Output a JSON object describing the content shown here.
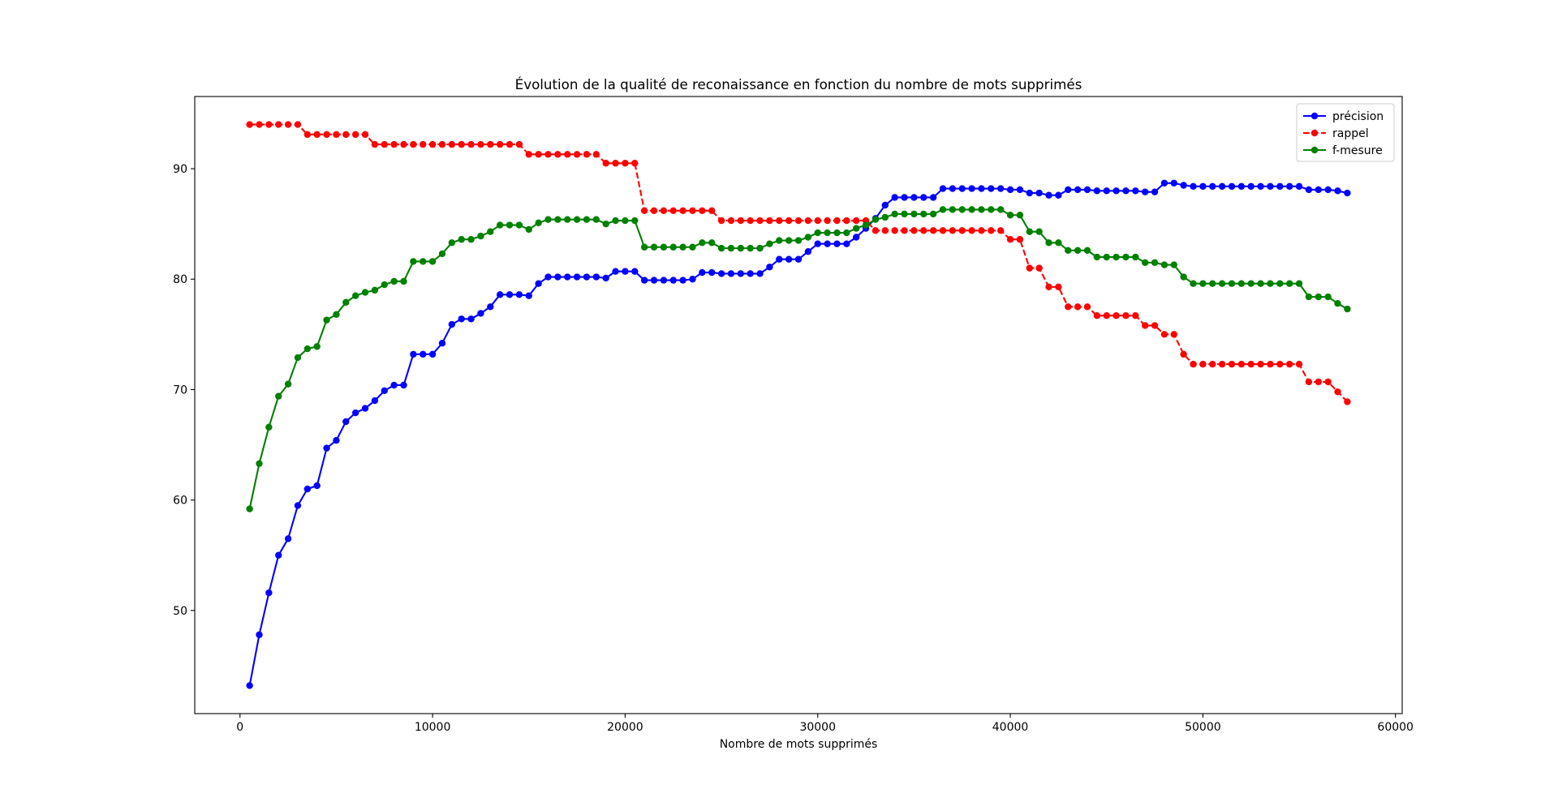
{
  "chart_data": {
    "type": "line",
    "title": "Évolution de la qualité de reconaissance en fonction du nombre de mots supprimés",
    "xlabel": "Nombre de mots supprimés",
    "x": [
      500,
      1000,
      1500,
      2000,
      2500,
      3000,
      3500,
      4000,
      4500,
      5000,
      5500,
      6000,
      6500,
      7000,
      7500,
      8000,
      8500,
      9000,
      9500,
      10000,
      10500,
      11000,
      11500,
      12000,
      12500,
      13000,
      13500,
      14000,
      14500,
      15000,
      15500,
      16000,
      16500,
      17000,
      17500,
      18000,
      18500,
      19000,
      19500,
      20000,
      20500,
      21000,
      21500,
      22000,
      22500,
      23000,
      23500,
      24000,
      24500,
      25000,
      25500,
      26000,
      26500,
      27000,
      27500,
      28000,
      28500,
      29000,
      29500,
      30000,
      30500,
      31000,
      31500,
      32000,
      32500,
      33000,
      33500,
      34000,
      34500,
      35000,
      35500,
      36000,
      36500,
      37000,
      37500,
      38000,
      38500,
      39000,
      39500,
      40000,
      40500,
      41000,
      41500,
      42000,
      42500,
      43000,
      43500,
      44000,
      44500,
      45000,
      45500,
      46000,
      46500,
      47000,
      47500,
      48000,
      48500,
      49000,
      49500,
      50000,
      50500,
      51000,
      51500,
      52000,
      52500,
      53000,
      53500,
      54000,
      54500,
      55000,
      55500,
      56000,
      56500,
      57000,
      57500
    ],
    "series": [
      {
        "name": "précision",
        "color": "#0000ff",
        "linestyle": "solid",
        "values": [
          43.2,
          47.8,
          51.6,
          55.0,
          56.5,
          59.5,
          61.0,
          61.3,
          64.7,
          65.4,
          67.1,
          67.9,
          68.3,
          69.0,
          69.9,
          70.4,
          70.4,
          73.2,
          73.2,
          73.2,
          74.2,
          75.9,
          76.4,
          76.4,
          76.9,
          77.5,
          78.6,
          78.6,
          78.6,
          78.5,
          79.6,
          80.2,
          80.2,
          80.2,
          80.2,
          80.2,
          80.2,
          80.1,
          80.7,
          80.7,
          80.7,
          79.9,
          79.9,
          79.9,
          79.9,
          79.9,
          80.0,
          80.6,
          80.6,
          80.5,
          80.5,
          80.5,
          80.5,
          80.5,
          81.1,
          81.8,
          81.8,
          81.8,
          82.5,
          83.2,
          83.2,
          83.2,
          83.2,
          83.8,
          84.6,
          85.5,
          86.7,
          87.4,
          87.4,
          87.4,
          87.4,
          87.4,
          88.2,
          88.2,
          88.2,
          88.2,
          88.2,
          88.2,
          88.2,
          88.1,
          88.1,
          87.8,
          87.8,
          87.6,
          87.6,
          88.1,
          88.1,
          88.1,
          88.0,
          88.0,
          88.0,
          88.0,
          88.0,
          87.9,
          87.9,
          88.7,
          88.7,
          88.5,
          88.4,
          88.4,
          88.4,
          88.4,
          88.4,
          88.4,
          88.4,
          88.4,
          88.4,
          88.4,
          88.4,
          88.4,
          88.1,
          88.1,
          88.1,
          88.0,
          87.8
        ]
      },
      {
        "name": "rappel",
        "color": "#ff0000",
        "linestyle": "dashed",
        "values": [
          94.0,
          94.0,
          94.0,
          94.0,
          94.0,
          94.0,
          93.1,
          93.1,
          93.1,
          93.1,
          93.1,
          93.1,
          93.1,
          92.2,
          92.2,
          92.2,
          92.2,
          92.2,
          92.2,
          92.2,
          92.2,
          92.2,
          92.2,
          92.2,
          92.2,
          92.2,
          92.2,
          92.2,
          92.2,
          91.3,
          91.3,
          91.3,
          91.3,
          91.3,
          91.3,
          91.3,
          91.3,
          90.5,
          90.5,
          90.5,
          90.5,
          86.2,
          86.2,
          86.2,
          86.2,
          86.2,
          86.2,
          86.2,
          86.2,
          85.3,
          85.3,
          85.3,
          85.3,
          85.3,
          85.3,
          85.3,
          85.3,
          85.3,
          85.3,
          85.3,
          85.3,
          85.3,
          85.3,
          85.3,
          85.3,
          84.4,
          84.4,
          84.4,
          84.4,
          84.4,
          84.4,
          84.4,
          84.4,
          84.4,
          84.4,
          84.4,
          84.4,
          84.4,
          84.4,
          83.6,
          83.6,
          81.0,
          81.0,
          79.3,
          79.3,
          77.5,
          77.5,
          77.5,
          76.7,
          76.7,
          76.7,
          76.7,
          76.7,
          75.8,
          75.8,
          75.0,
          75.0,
          73.2,
          72.3,
          72.3,
          72.3,
          72.3,
          72.3,
          72.3,
          72.3,
          72.3,
          72.3,
          72.3,
          72.3,
          72.3,
          70.7,
          70.7,
          70.7,
          69.8,
          68.9
        ]
      },
      {
        "name": "f-mesure",
        "color": "#008000",
        "linestyle": "solid",
        "values": [
          59.2,
          63.3,
          66.6,
          69.4,
          70.5,
          72.9,
          73.7,
          73.9,
          76.3,
          76.8,
          77.9,
          78.5,
          78.8,
          79.0,
          79.5,
          79.8,
          79.8,
          81.6,
          81.6,
          81.6,
          82.3,
          83.3,
          83.6,
          83.6,
          83.9,
          84.3,
          84.9,
          84.9,
          84.9,
          84.5,
          85.1,
          85.4,
          85.4,
          85.4,
          85.4,
          85.4,
          85.4,
          85.0,
          85.3,
          85.3,
          85.3,
          82.9,
          82.9,
          82.9,
          82.9,
          82.9,
          82.9,
          83.3,
          83.3,
          82.8,
          82.8,
          82.8,
          82.8,
          82.8,
          83.2,
          83.5,
          83.5,
          83.5,
          83.8,
          84.2,
          84.2,
          84.2,
          84.2,
          84.6,
          84.9,
          85.4,
          85.6,
          85.9,
          85.9,
          85.9,
          85.9,
          85.9,
          86.3,
          86.3,
          86.3,
          86.3,
          86.3,
          86.3,
          86.3,
          85.8,
          85.8,
          84.3,
          84.3,
          83.3,
          83.3,
          82.6,
          82.6,
          82.6,
          82.0,
          82.0,
          82.0,
          82.0,
          82.0,
          81.5,
          81.5,
          81.3,
          81.3,
          80.2,
          79.6,
          79.6,
          79.6,
          79.6,
          79.6,
          79.6,
          79.6,
          79.6,
          79.6,
          79.6,
          79.6,
          79.6,
          78.4,
          78.4,
          78.4,
          77.8,
          77.3
        ]
      }
    ],
    "xlim": [
      -2350,
      60350
    ],
    "xticks": [
      0,
      10000,
      20000,
      30000,
      40000,
      50000,
      60000
    ],
    "ylim": [
      40.66,
      96.54
    ],
    "yticks": [
      50,
      60,
      70,
      80,
      90
    ],
    "grid": false,
    "legend": "upper right"
  }
}
